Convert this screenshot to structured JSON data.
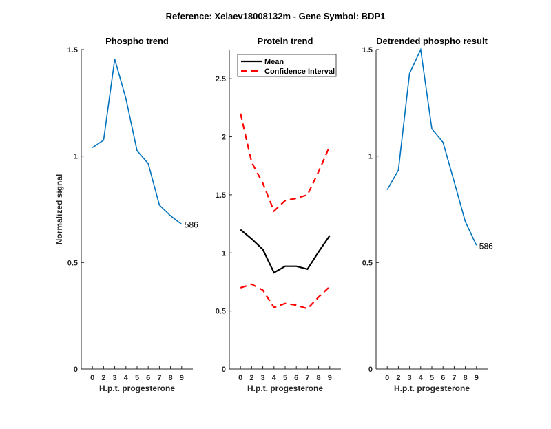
{
  "figure_title": "Reference:  Xelaev18008132m - Gene Symbol:  BDP1",
  "chart_data": [
    {
      "type": "line",
      "title": "Phospho trend",
      "xlabel": "H.p.t. progesterone",
      "ylabel": "Normalized signal",
      "categories": [
        "0",
        "2",
        "3",
        "4",
        "5",
        "6",
        "7",
        "8",
        "9"
      ],
      "ylim": [
        0,
        1.5
      ],
      "yticks": [
        "0",
        "0.5",
        "1",
        "1.5"
      ],
      "series": [
        {
          "name": "Phospho",
          "color": "#0072BD",
          "values": [
            1.04,
            1.075,
            1.455,
            1.27,
            1.025,
            0.965,
            0.77,
            0.72,
            0.68
          ]
        }
      ],
      "annotation": "586"
    },
    {
      "type": "line",
      "title": "Protein trend",
      "xlabel": "H.p.t. progesterone",
      "ylabel": "",
      "categories": [
        "0",
        "2",
        "3",
        "4",
        "5",
        "6",
        "7",
        "8",
        "9"
      ],
      "ylim": [
        0,
        2.75
      ],
      "yticks": [
        "0",
        "0.5",
        "1",
        "1.5",
        "2",
        "2.5"
      ],
      "legend": {
        "placement": "top",
        "entries": [
          "Mean",
          "Confidence Interval"
        ]
      },
      "series": [
        {
          "name": "Mean",
          "color": "#000000",
          "style": "solid",
          "values": [
            1.2,
            1.12,
            1.03,
            0.83,
            0.885,
            0.885,
            0.86,
            1.01,
            1.15
          ]
        },
        {
          "name": "Confidence Interval (upper)",
          "color": "#FF0000",
          "style": "dashed",
          "values": [
            2.2,
            1.78,
            1.6,
            1.36,
            1.45,
            1.47,
            1.5,
            1.7,
            1.92
          ]
        },
        {
          "name": "Confidence Interval (lower)",
          "color": "#FF0000",
          "style": "dashed",
          "values": [
            0.7,
            0.73,
            0.68,
            0.53,
            0.565,
            0.55,
            0.52,
            0.62,
            0.71
          ]
        }
      ]
    },
    {
      "type": "line",
      "title": "Detrended phospho result",
      "xlabel": "H.p.t. progesterone",
      "ylabel": "",
      "categories": [
        "0",
        "2",
        "3",
        "4",
        "5",
        "6",
        "7",
        "8",
        "9"
      ],
      "ylim": [
        0,
        1.5
      ],
      "yticks": [
        "0",
        "0.5",
        "1",
        "1.5"
      ],
      "series": [
        {
          "name": "Detrended",
          "color": "#0072BD",
          "values": [
            0.842,
            0.934,
            1.388,
            1.5,
            1.128,
            1.065,
            0.88,
            0.692,
            0.581
          ]
        }
      ],
      "annotation": "586"
    }
  ]
}
